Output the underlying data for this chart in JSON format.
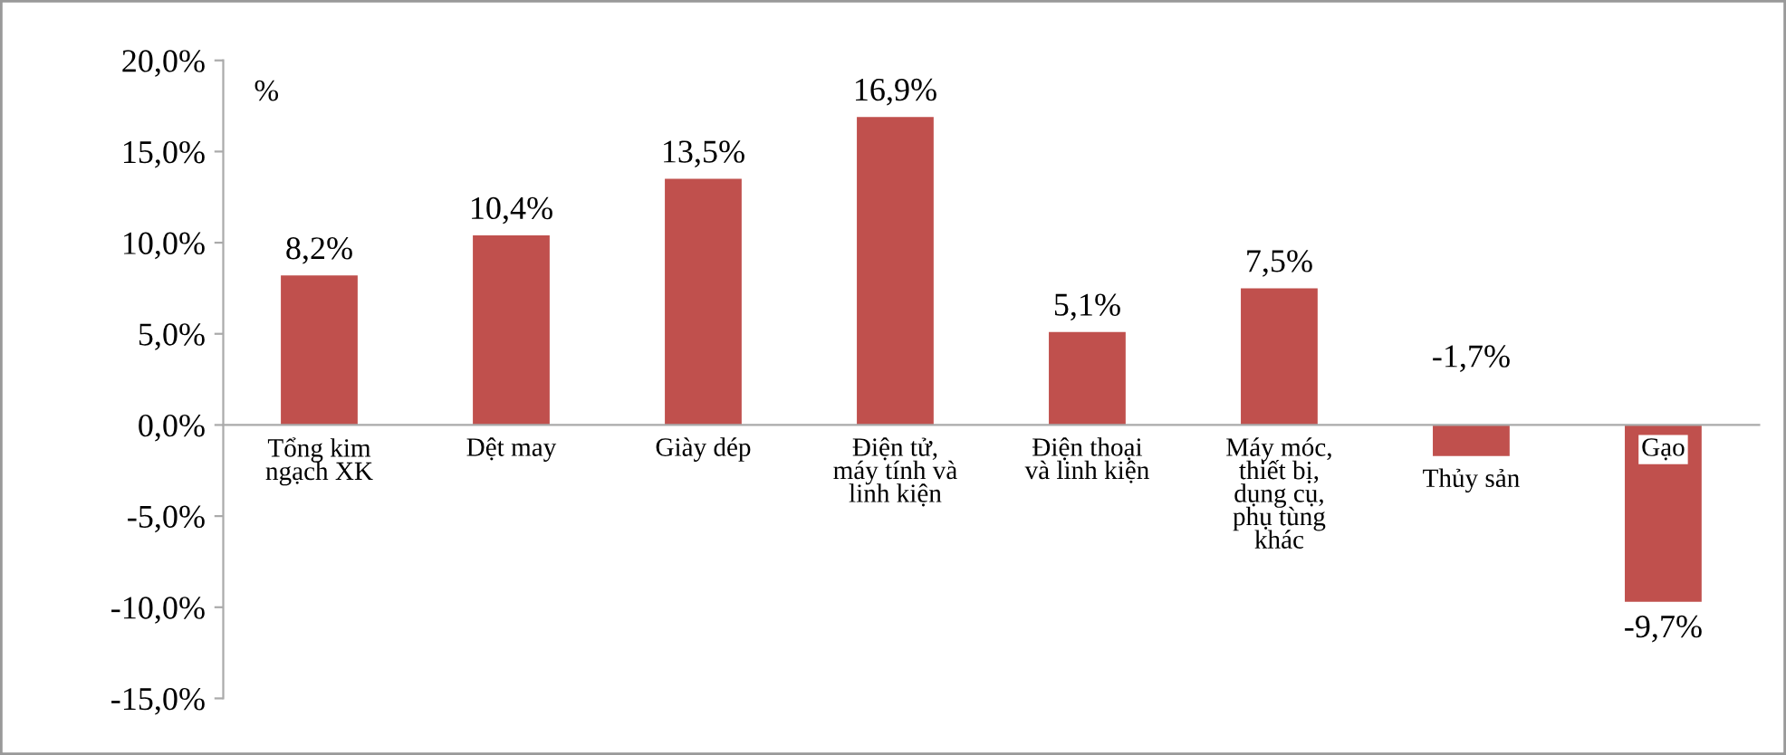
{
  "chart_data": {
    "type": "bar",
    "ylabel": "%",
    "categories": [
      "Tổng kim\nngạch XK",
      "Dệt may",
      "Giày dép",
      "Điện tử,\nmáy tính và\nlinh kiện",
      "Điện thoại\nvà linh kiện",
      "Máy móc,\nthiết bị,\ndụng cụ,\nphụ tùng\nkhác",
      "Thủy sản",
      "Gạo"
    ],
    "values": [
      8.2,
      10.4,
      13.5,
      16.9,
      5.1,
      7.5,
      -1.7,
      -9.7
    ],
    "value_labels": [
      "8,2%",
      "10,4%",
      "13,5%",
      "16,9%",
      "5,1%",
      "7,5%",
      "-1,7%",
      "-9,7%"
    ],
    "color": "#c0504d",
    "ylim": [
      -15,
      20
    ],
    "yticks": [
      {
        "value": 20,
        "label": "20,0%"
      },
      {
        "value": 15,
        "label": "15,0%"
      },
      {
        "value": 10,
        "label": "10,0%"
      },
      {
        "value": 5,
        "label": "5,0%"
      },
      {
        "value": 0,
        "label": "0,0%"
      },
      {
        "value": -5,
        "label": "-5,0%"
      },
      {
        "value": -10,
        "label": "-10,0%"
      },
      {
        "value": -15,
        "label": "-15,0%"
      }
    ],
    "grid": false,
    "legend": false
  }
}
